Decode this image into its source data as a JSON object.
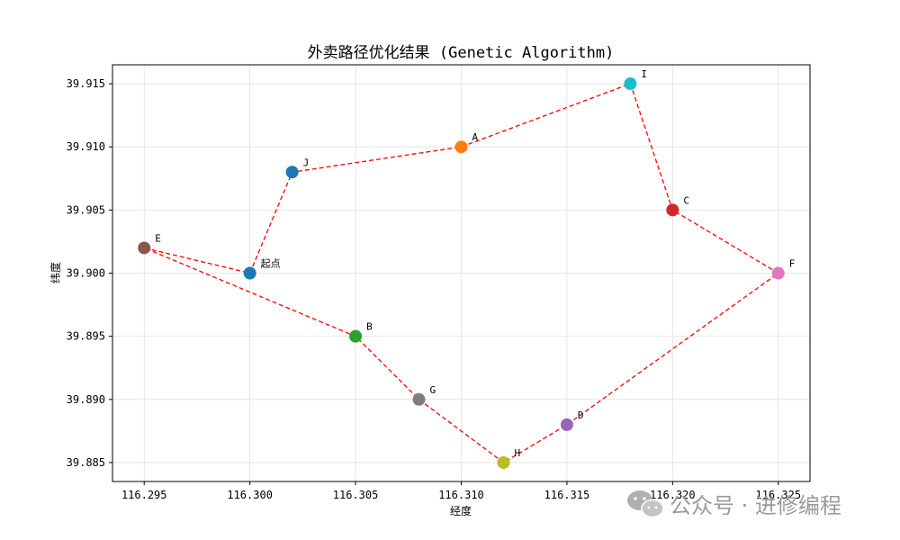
{
  "chart_data": {
    "type": "line",
    "title": "外卖路径优化结果 (Genetic Algorithm)",
    "xlabel": "经度",
    "ylabel": "纬度",
    "xlim": [
      116.2935,
      116.3265
    ],
    "ylim": [
      39.8835,
      39.9165
    ],
    "xticks": [
      "116.295",
      "116.300",
      "116.305",
      "116.310",
      "116.315",
      "116.320",
      "116.325"
    ],
    "xtick_values": [
      116.295,
      116.3,
      116.305,
      116.31,
      116.315,
      116.32,
      116.325
    ],
    "yticks": [
      "39.885",
      "39.890",
      "39.895",
      "39.900",
      "39.905",
      "39.910",
      "39.915"
    ],
    "ytick_values": [
      39.885,
      39.89,
      39.895,
      39.9,
      39.905,
      39.91,
      39.915
    ],
    "grid": true,
    "route_color": "#ff0000",
    "route_style": "dashed",
    "points": [
      {
        "label": "起点",
        "x": 116.3,
        "y": 39.9,
        "color": "#1f77b4"
      },
      {
        "label": "A",
        "x": 116.31,
        "y": 39.91,
        "color": "#ff7f0e"
      },
      {
        "label": "B",
        "x": 116.305,
        "y": 39.895,
        "color": "#2ca02c"
      },
      {
        "label": "C",
        "x": 116.32,
        "y": 39.905,
        "color": "#d62728"
      },
      {
        "label": "D",
        "x": 116.315,
        "y": 39.888,
        "color": "#9467bd"
      },
      {
        "label": "E",
        "x": 116.295,
        "y": 39.902,
        "color": "#8c564b"
      },
      {
        "label": "F",
        "x": 116.325,
        "y": 39.9,
        "color": "#e377c2"
      },
      {
        "label": "G",
        "x": 116.308,
        "y": 39.89,
        "color": "#7f7f7f"
      },
      {
        "label": "H",
        "x": 116.312,
        "y": 39.885,
        "color": "#bcbd22"
      },
      {
        "label": "I",
        "x": 116.318,
        "y": 39.915,
        "color": "#17becf"
      },
      {
        "label": "J",
        "x": 116.302,
        "y": 39.908,
        "color": "#1f77b4"
      }
    ],
    "route": [
      "起点",
      "J",
      "A",
      "I",
      "C",
      "F",
      "D",
      "H",
      "G",
      "B",
      "E",
      "起点"
    ]
  },
  "watermark": {
    "text": "公众号 · 进修编程",
    "icon": "wechat-icon"
  }
}
